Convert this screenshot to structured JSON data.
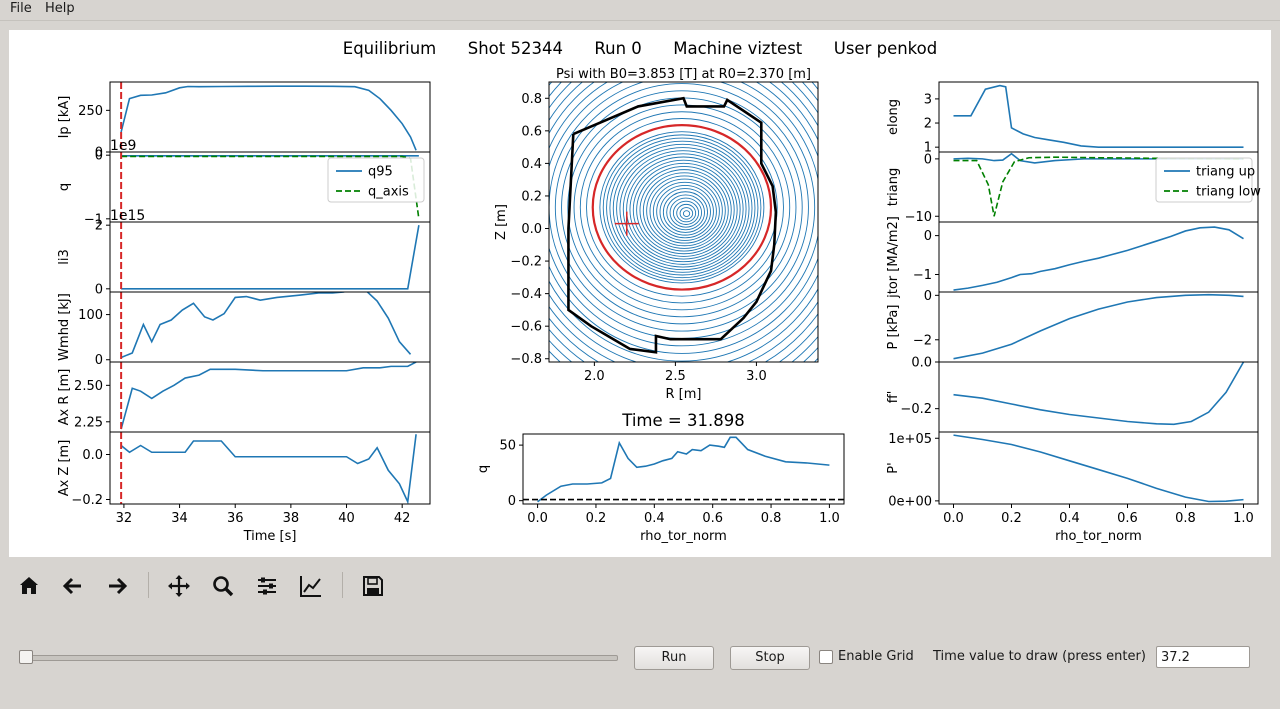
{
  "menu": {
    "file": "File",
    "help": "Help"
  },
  "header": {
    "title": "Equilibrium      Shot 52344      Run 0      Machine viztest      User penkod"
  },
  "colors": {
    "blue": "#1f77b4",
    "red": "#d62728",
    "green": "#008000",
    "black": "#000000"
  },
  "toolbar": {
    "icons": [
      "home-icon",
      "back-arrow-icon",
      "forward-arrow-icon",
      "pan-icon",
      "zoom-icon",
      "configure-subplots-icon",
      "edit-axes-icon",
      "save-icon"
    ]
  },
  "controls": {
    "run_label": "Run",
    "stop_label": "Stop",
    "grid_label": "Enable Grid",
    "grid_checked": false,
    "time_label": "Time value to draw (press enter)",
    "time_value": "37.2",
    "slider_fraction": 0.0
  },
  "chart_data": [
    {
      "type": "line",
      "id": "ip",
      "xlabel": "",
      "ylabel": "Ip [kA]",
      "xlim": [
        31.5,
        43.0
      ],
      "ylim": [
        0,
        420
      ],
      "yticks": [
        0,
        250
      ],
      "ytick_labels": [
        "0",
        "250"
      ],
      "series": [
        {
          "color": "#1f77b4",
          "style": "solid",
          "x": [
            31.9,
            32.2,
            32.6,
            33.0,
            33.5,
            34.0,
            34.3,
            34.7,
            35.5,
            36.5,
            37.5,
            38.5,
            39.5,
            40.3,
            40.8,
            41.2,
            41.6,
            42.0,
            42.3,
            42.5
          ],
          "y": [
            120,
            320,
            340,
            342,
            355,
            385,
            393,
            392,
            393,
            394,
            395,
            395,
            394,
            392,
            370,
            320,
            250,
            170,
            90,
            10
          ]
        }
      ],
      "marker_line_x": 31.9
    },
    {
      "type": "line",
      "id": "q",
      "ylabel": "q",
      "offset_label": "1e9",
      "xlim": [
        31.5,
        43.0
      ],
      "ylim": [
        -1.05,
        0.05
      ],
      "yticks": [
        0,
        -1
      ],
      "ytick_labels": [
        "0",
        "−1"
      ],
      "legend": {
        "position": "right",
        "entries": [
          "q95",
          "q_axis"
        ]
      },
      "series": [
        {
          "name": "q95",
          "color": "#1f77b4",
          "style": "solid",
          "x": [
            31.9,
            42.6
          ],
          "y": [
            -0.01,
            -0.01
          ]
        },
        {
          "name": "q_axis",
          "color": "#008000",
          "style": "dashed",
          "x": [
            31.9,
            42.0,
            42.3,
            42.6
          ],
          "y": [
            -0.02,
            -0.02,
            -0.05,
            -1.0
          ]
        }
      ],
      "marker_line_x": 31.9
    },
    {
      "type": "line",
      "id": "li3",
      "ylabel": "li3",
      "offset_label": "1e15",
      "xlim": [
        31.5,
        43.0
      ],
      "ylim": [
        -0.1,
        2.1
      ],
      "yticks": [
        2,
        0
      ],
      "ytick_labels": [
        "2",
        "0"
      ],
      "series": [
        {
          "color": "#1f77b4",
          "style": "solid",
          "x": [
            31.9,
            42.2,
            42.6
          ],
          "y": [
            0,
            0,
            2.0
          ]
        }
      ],
      "marker_line_x": 31.9
    },
    {
      "type": "line",
      "id": "wmhd",
      "ylabel": "Wmhd [kJ]",
      "xlim": [
        31.5,
        43.0
      ],
      "ylim": [
        -5,
        150
      ],
      "yticks": [
        100,
        0
      ],
      "ytick_labels": [
        "100",
        "0"
      ],
      "series": [
        {
          "color": "#1f77b4",
          "style": "solid",
          "x": [
            31.9,
            32.3,
            32.7,
            33.0,
            33.3,
            33.7,
            34.1,
            34.5,
            34.9,
            35.2,
            35.6,
            36.0,
            36.4,
            36.9,
            37.5,
            38.3,
            39.0,
            39.5,
            39.9,
            40.3,
            40.7,
            41.1,
            41.5,
            41.9,
            42.3
          ],
          "y": [
            5,
            15,
            78,
            40,
            78,
            88,
            110,
            125,
            95,
            88,
            102,
            138,
            140,
            132,
            138,
            143,
            148,
            148,
            150,
            158,
            153,
            130,
            92,
            40,
            12
          ]
        }
      ],
      "marker_line_x": 31.9
    },
    {
      "type": "line",
      "id": "axr",
      "ylabel": "Ax R [m]",
      "xlim": [
        31.5,
        43.0
      ],
      "ylim": [
        2.18,
        2.66
      ],
      "yticks": [
        2.5,
        2.25
      ],
      "ytick_labels": [
        "2.50",
        "2.25"
      ],
      "series": [
        {
          "color": "#1f77b4",
          "style": "solid",
          "x": [
            31.9,
            32.3,
            32.6,
            33.0,
            33.4,
            33.8,
            34.2,
            34.7,
            35.1,
            35.6,
            36.0,
            37.0,
            38.0,
            39.0,
            40.0,
            40.6,
            41.2,
            41.6,
            42.2,
            42.5
          ],
          "y": [
            2.2,
            2.48,
            2.46,
            2.41,
            2.46,
            2.5,
            2.55,
            2.57,
            2.61,
            2.61,
            2.61,
            2.6,
            2.6,
            2.6,
            2.6,
            2.62,
            2.62,
            2.63,
            2.63,
            2.66
          ]
        }
      ],
      "marker_line_x": 31.9
    },
    {
      "type": "line",
      "id": "axz",
      "xlabel": "Time [s]",
      "ylabel": "Ax Z [m]",
      "xlim": [
        31.5,
        43.0
      ],
      "ylim": [
        -0.22,
        0.1
      ],
      "xticks": [
        32,
        34,
        36,
        38,
        40,
        42
      ],
      "xtick_labels": [
        "32",
        "34",
        "36",
        "38",
        "40",
        "42"
      ],
      "yticks": [
        0.0,
        -0.2
      ],
      "ytick_labels": [
        "0.0",
        "−0.2"
      ],
      "series": [
        {
          "color": "#1f77b4",
          "style": "solid",
          "x": [
            31.9,
            32.2,
            32.6,
            33.0,
            33.4,
            33.8,
            34.2,
            34.5,
            35.0,
            35.5,
            36.0,
            37.0,
            38.0,
            39.0,
            40.0,
            40.4,
            40.8,
            41.1,
            41.5,
            41.9,
            42.2,
            42.5
          ],
          "y": [
            0.04,
            0.01,
            0.04,
            0.01,
            0.01,
            0.01,
            0.01,
            0.06,
            0.06,
            0.06,
            -0.01,
            -0.01,
            -0.01,
            -0.01,
            -0.01,
            -0.04,
            -0.02,
            0.03,
            -0.07,
            -0.13,
            -0.21,
            0.09
          ]
        }
      ],
      "marker_line_x": 31.9
    },
    {
      "type": "contour",
      "id": "psi",
      "title": "Psi with B0=3.853 [T] at R0=2.370 [m]",
      "xlabel": "R [m]",
      "ylabel": "Z [m]",
      "xlim": [
        1.72,
        3.38
      ],
      "ylim": [
        -0.82,
        0.9
      ],
      "xticks": [
        2.0,
        2.5,
        3.0
      ],
      "xtick_labels": [
        "2.0",
        "2.5",
        "3.0"
      ],
      "yticks": [
        0.8,
        0.6,
        0.4,
        0.2,
        0.0,
        -0.2,
        -0.4,
        -0.6,
        -0.8
      ],
      "ytick_labels": [
        "0.8",
        "0.6",
        "0.4",
        "0.2",
        "0.0",
        "−0.2",
        "−0.4",
        "−0.6",
        "−0.8"
      ],
      "magnetic_axis": [
        2.57,
        0.09
      ],
      "separatrix": {
        "color": "#d62728",
        "rmin": 1.99,
        "rmax": 3.09,
        "zmin": -0.37,
        "zmax": 0.64,
        "rcenter": 2.54,
        "zcenter": 0.13
      },
      "first_wall": {
        "color": "#000000",
        "r": [
          1.87,
          2.27,
          2.55,
          2.57,
          2.8,
          2.82,
          3.03,
          3.03,
          3.1,
          3.12,
          3.11,
          3.09,
          3.0,
          2.92,
          2.78,
          2.47,
          2.38,
          2.38,
          2.22,
          1.98,
          1.84,
          1.84,
          1.87
        ],
        "z": [
          0.58,
          0.75,
          0.8,
          0.75,
          0.75,
          0.79,
          0.65,
          0.4,
          0.26,
          0.1,
          -0.1,
          -0.26,
          -0.45,
          -0.55,
          -0.68,
          -0.68,
          -0.66,
          -0.76,
          -0.74,
          -0.6,
          -0.5,
          0.0,
          0.58
        ]
      },
      "cross_marker": [
        2.2,
        0.03
      ]
    },
    {
      "type": "line",
      "id": "qprofile",
      "title": "Time = 31.898",
      "xlabel": "rho_tor_norm",
      "ylabel": "q",
      "xlim": [
        -0.05,
        1.05
      ],
      "ylim": [
        -3,
        60
      ],
      "xticks": [
        0.0,
        0.2,
        0.4,
        0.6,
        0.8,
        1.0
      ],
      "xtick_labels": [
        "0.0",
        "0.2",
        "0.4",
        "0.6",
        "0.8",
        "1.0"
      ],
      "yticks": [
        50,
        0
      ],
      "ytick_labels": [
        "50",
        "0"
      ],
      "series": [
        {
          "color": "#1f77b4",
          "style": "solid",
          "x": [
            0.0,
            0.03,
            0.08,
            0.12,
            0.17,
            0.22,
            0.25,
            0.28,
            0.31,
            0.34,
            0.37,
            0.4,
            0.43,
            0.46,
            0.48,
            0.51,
            0.53,
            0.56,
            0.59,
            0.62,
            0.64,
            0.66,
            0.68,
            0.72,
            0.78,
            0.85,
            0.92,
            1.0
          ],
          "y": [
            -1,
            5,
            13,
            15,
            15,
            16,
            20,
            52,
            38,
            30,
            31,
            33,
            36,
            38,
            44,
            42,
            46,
            45,
            50,
            49,
            48,
            57,
            57,
            46,
            40,
            35,
            34,
            32
          ]
        },
        {
          "color": "#000000",
          "style": "dashed",
          "x": [
            -0.05,
            1.05
          ],
          "y": [
            1,
            1
          ]
        }
      ]
    },
    {
      "type": "line",
      "id": "elong",
      "ylabel": "elong",
      "xlim": [
        -0.05,
        1.05
      ],
      "ylim": [
        0.8,
        3.7
      ],
      "yticks": [
        3,
        2,
        1
      ],
      "ytick_labels": [
        "3",
        "2",
        "1"
      ],
      "series": [
        {
          "color": "#1f77b4",
          "style": "solid",
          "x": [
            0.0,
            0.06,
            0.11,
            0.16,
            0.18,
            0.2,
            0.24,
            0.28,
            0.33,
            0.38,
            0.44,
            0.5,
            0.6,
            0.7,
            0.8,
            0.9,
            1.0
          ],
          "y": [
            2.3,
            2.3,
            3.4,
            3.55,
            3.5,
            1.8,
            1.55,
            1.4,
            1.3,
            1.2,
            1.05,
            1.0,
            1.0,
            1.0,
            1.0,
            1.0,
            1.0
          ]
        }
      ]
    },
    {
      "type": "line",
      "id": "triang",
      "ylabel": "triang",
      "xlim": [
        -0.05,
        1.05
      ],
      "ylim": [
        -11,
        1.2
      ],
      "yticks": [
        0,
        -10
      ],
      "ytick_labels": [
        "0",
        "−10"
      ],
      "legend": {
        "position": "right",
        "entries": [
          "triang up",
          "triang low"
        ]
      },
      "series": [
        {
          "name": "triang up",
          "color": "#1f77b4",
          "style": "solid",
          "x": [
            0.0,
            0.05,
            0.1,
            0.14,
            0.17,
            0.2,
            0.23,
            0.28,
            0.35,
            0.45,
            0.6,
            0.8,
            1.0
          ],
          "y": [
            0,
            0.1,
            0,
            -0.3,
            -0.2,
            0.9,
            -0.3,
            -0.7,
            -0.3,
            0,
            0,
            0,
            0
          ]
        },
        {
          "name": "triang low",
          "color": "#008000",
          "style": "dashed",
          "x": [
            0.0,
            0.08,
            0.12,
            0.14,
            0.17,
            0.21,
            0.26,
            0.35,
            0.5,
            0.7,
            1.0
          ],
          "y": [
            -0.3,
            -0.3,
            -4.5,
            -10,
            -4,
            -0.5,
            0.2,
            0.3,
            0.2,
            0.1,
            0
          ]
        }
      ]
    },
    {
      "type": "line",
      "id": "jtor",
      "ylabel": "jtor [MA/m2]",
      "xlim": [
        -0.05,
        1.05
      ],
      "ylim": [
        -1.45,
        0.35
      ],
      "yticks": [
        0,
        -1
      ],
      "ytick_labels": [
        "0",
        "−1"
      ],
      "series": [
        {
          "color": "#1f77b4",
          "style": "solid",
          "x": [
            0.0,
            0.05,
            0.1,
            0.15,
            0.2,
            0.23,
            0.27,
            0.3,
            0.35,
            0.4,
            0.45,
            0.5,
            0.55,
            0.6,
            0.65,
            0.7,
            0.75,
            0.8,
            0.85,
            0.9,
            0.95,
            1.0
          ],
          "y": [
            -1.4,
            -1.35,
            -1.28,
            -1.2,
            -1.08,
            -1.0,
            -0.98,
            -0.92,
            -0.85,
            -0.75,
            -0.66,
            -0.58,
            -0.48,
            -0.38,
            -0.26,
            -0.14,
            -0.02,
            0.12,
            0.2,
            0.22,
            0.15,
            -0.08
          ]
        }
      ]
    },
    {
      "type": "line",
      "id": "pressure",
      "ylabel": "P [kPa]",
      "xlim": [
        -0.05,
        1.05
      ],
      "ylim": [
        -3.0,
        0.15
      ],
      "yticks": [
        0,
        -2
      ],
      "ytick_labels": [
        "0",
        "−2"
      ],
      "series": [
        {
          "color": "#1f77b4",
          "style": "solid",
          "x": [
            0.0,
            0.1,
            0.2,
            0.3,
            0.4,
            0.5,
            0.6,
            0.7,
            0.8,
            0.88,
            0.95,
            1.0
          ],
          "y": [
            -2.85,
            -2.6,
            -2.2,
            -1.6,
            -1.05,
            -0.62,
            -0.3,
            -0.1,
            0.0,
            0.03,
            0.0,
            -0.05
          ]
        }
      ]
    },
    {
      "type": "line",
      "id": "ffprime",
      "ylabel": "ff'",
      "xlim": [
        -0.05,
        1.05
      ],
      "ylim": [
        -0.3,
        0.0
      ],
      "yticks": [
        0.0,
        -0.2
      ],
      "ytick_labels": [
        "0.0",
        "−0.2"
      ],
      "series": [
        {
          "color": "#1f77b4",
          "style": "solid",
          "x": [
            0.0,
            0.1,
            0.2,
            0.3,
            0.4,
            0.5,
            0.6,
            0.7,
            0.76,
            0.82,
            0.88,
            0.94,
            1.0
          ],
          "y": [
            -0.14,
            -0.155,
            -0.18,
            -0.205,
            -0.225,
            -0.24,
            -0.255,
            -0.265,
            -0.267,
            -0.255,
            -0.215,
            -0.13,
            0.0
          ]
        }
      ]
    },
    {
      "type": "line",
      "id": "pprime",
      "xlabel": "rho_tor_norm",
      "ylabel": "P'",
      "xlim": [
        -0.05,
        1.05
      ],
      "ylim": [
        -5000.0,
        110000.0
      ],
      "xticks": [
        0.0,
        0.2,
        0.4,
        0.6,
        0.8,
        1.0
      ],
      "xtick_labels": [
        "0.0",
        "0.2",
        "0.4",
        "0.6",
        "0.8",
        "1.0"
      ],
      "yticks": [
        100000.0,
        0
      ],
      "ytick_labels": [
        "1e+05",
        "0e+00"
      ],
      "series": [
        {
          "color": "#1f77b4",
          "style": "solid",
          "x": [
            0.0,
            0.1,
            0.2,
            0.3,
            0.4,
            0.5,
            0.6,
            0.7,
            0.8,
            0.88,
            0.94,
            1.0
          ],
          "y": [
            105000.0,
            98000.0,
            90000.0,
            78000.0,
            64000.0,
            50000.0,
            36000.0,
            20000.0,
            6000.0,
            -1000.0,
            -500.0,
            2000.0
          ]
        }
      ]
    }
  ]
}
